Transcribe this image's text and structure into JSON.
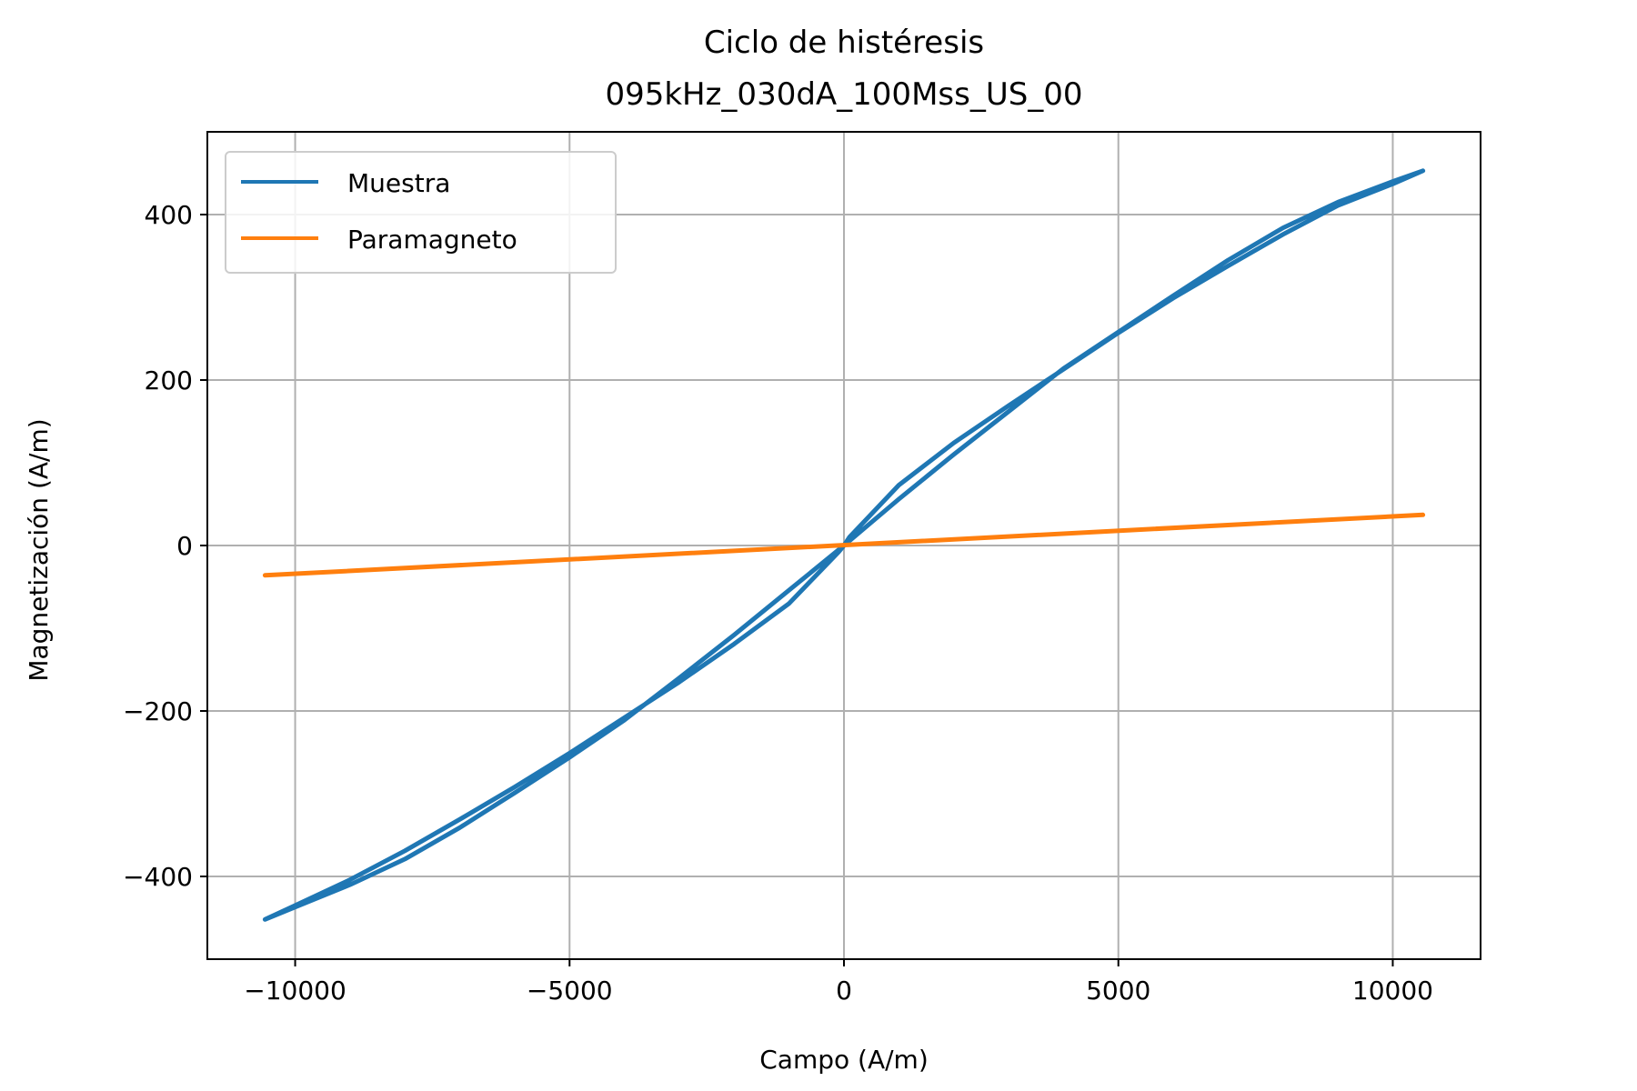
{
  "chart_data": {
    "type": "line",
    "title": "Ciclo de histéresis",
    "subtitle": "095kHz_030dA_100Mss_US_00",
    "xlabel": "Campo (A/m)",
    "ylabel": "Magnetización (A/m)",
    "xlim": [
      -11600,
      11600
    ],
    "ylim": [
      -500,
      500
    ],
    "xticks": [
      -10000,
      -5000,
      0,
      5000,
      10000
    ],
    "xtick_labels": [
      "−10000",
      "−5000",
      "0",
      "5000",
      "10000"
    ],
    "yticks": [
      -400,
      -200,
      0,
      200,
      400
    ],
    "ytick_labels": [
      "−400",
      "−200",
      "0",
      "200",
      "400"
    ],
    "grid": true,
    "legend_position": "upper-left",
    "series": [
      {
        "name": "Muestra",
        "color": "#1f77b4",
        "x": [
          -10550,
          -10000,
          -9000,
          -8000,
          -7000,
          -6000,
          -5000,
          -4000,
          -3000,
          -2000,
          -1000,
          -100,
          0,
          1000,
          2000,
          3000,
          4000,
          5000,
          6000,
          7000,
          8000,
          9000,
          10000,
          10550,
          10000,
          9000,
          8000,
          7000,
          6000,
          5000,
          4000,
          3000,
          2000,
          1000,
          100,
          0,
          -1000,
          -2000,
          -3000,
          -4000,
          -5000,
          -6000,
          -7000,
          -8000,
          -9000,
          -10000,
          -10550
        ],
        "y": [
          -452,
          -435,
          -404,
          -369,
          -331,
          -292,
          -251,
          -208,
          -165,
          -119,
          -70,
          -8,
          0,
          56,
          110,
          162,
          214,
          258,
          302,
          345,
          384,
          415,
          440,
          453,
          437,
          411,
          376,
          338,
          299,
          257,
          213,
          169,
          124,
          73,
          10,
          0,
          -54,
          -108,
          -160,
          -211,
          -256,
          -299,
          -341,
          -379,
          -410,
          -437,
          -452
        ]
      },
      {
        "name": "Paramagneto",
        "color": "#ff7f0e",
        "x": [
          -10550,
          10550
        ],
        "y": [
          -36,
          37
        ]
      }
    ]
  }
}
